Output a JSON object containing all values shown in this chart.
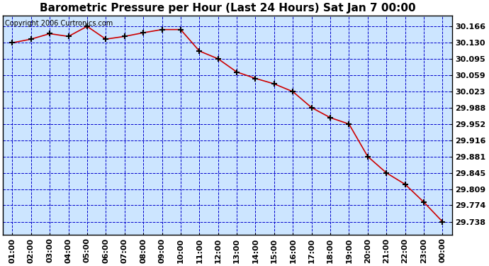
{
  "title": "Barometric Pressure per Hour (Last 24 Hours) Sat Jan 7 00:00",
  "copyright": "Copyright 2006 Curtronics.com",
  "x_labels": [
    "01:00",
    "02:00",
    "03:00",
    "04:00",
    "05:00",
    "06:00",
    "07:00",
    "08:00",
    "09:00",
    "10:00",
    "11:00",
    "12:00",
    "13:00",
    "14:00",
    "15:00",
    "16:00",
    "17:00",
    "18:00",
    "19:00",
    "20:00",
    "21:00",
    "22:00",
    "23:00",
    "00:00"
  ],
  "y_values": [
    30.13,
    30.138,
    30.15,
    30.144,
    30.166,
    30.138,
    30.144,
    30.152,
    30.159,
    30.159,
    30.112,
    30.095,
    30.066,
    30.052,
    30.04,
    30.023,
    29.988,
    29.966,
    29.952,
    29.881,
    29.845,
    29.82,
    29.781,
    29.738
  ],
  "yticks": [
    29.738,
    29.774,
    29.809,
    29.845,
    29.881,
    29.916,
    29.952,
    29.988,
    30.023,
    30.059,
    30.095,
    30.13,
    30.166
  ],
  "ylim_min": 29.71,
  "ylim_max": 30.19,
  "line_color": "#cc0000",
  "marker_color": "#000000",
  "plot_bg_color": "#cce5ff",
  "fig_bg_color": "#ffffff",
  "grid_color": "#0000cc",
  "border_color": "#000000",
  "title_fontsize": 11,
  "copyright_fontsize": 7,
  "tick_fontsize": 8,
  "ytick_fontsize": 8
}
